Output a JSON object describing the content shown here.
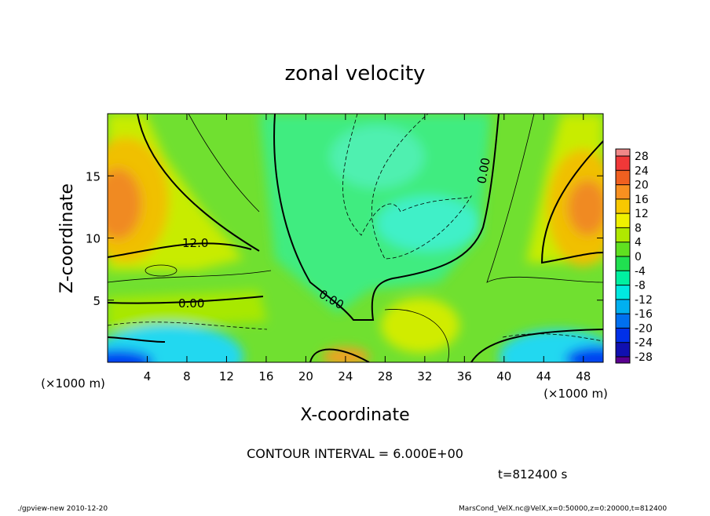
{
  "chart_data": {
    "type": "contour",
    "title": "zonal velocity",
    "x_label": "X-coordinate",
    "y_label": "Z-coordinate",
    "x_unit_label": "(×1000 m)",
    "y_unit_label": "(×1000 m)",
    "xlim": [
      0,
      50
    ],
    "ylim": [
      0,
      20
    ],
    "xticks": [
      4,
      8,
      12,
      16,
      20,
      24,
      28,
      32,
      36,
      40,
      44,
      48
    ],
    "yticks": [
      5,
      10,
      15
    ],
    "colorbar_ticks": [
      -28,
      -24,
      -20,
      -16,
      -12,
      -8,
      -4,
      0,
      4,
      8,
      12,
      16,
      20,
      24,
      28
    ],
    "colorbar_colors": [
      "#5a0090",
      "#1010b0",
      "#0030e8",
      "#0070f0",
      "#00b0f0",
      "#00e8e0",
      "#00f0a0",
      "#20e050",
      "#60e020",
      "#b0e800",
      "#f0f000",
      "#f8c800",
      "#f89020",
      "#f06020",
      "#f03838",
      "#f08888"
    ],
    "contour_labels": [
      "12.0",
      "0.00",
      "0.00",
      "0.00"
    ],
    "contour_interval_text": "CONTOUR INTERVAL = 6.000E+00",
    "time_text": "t=812400 s",
    "footer_left": "./gpview-new  2010-12-20",
    "footer_right": "MarsCond_VelX.nc@VelX,x=0:50000,z=0:20000,t=812400"
  }
}
